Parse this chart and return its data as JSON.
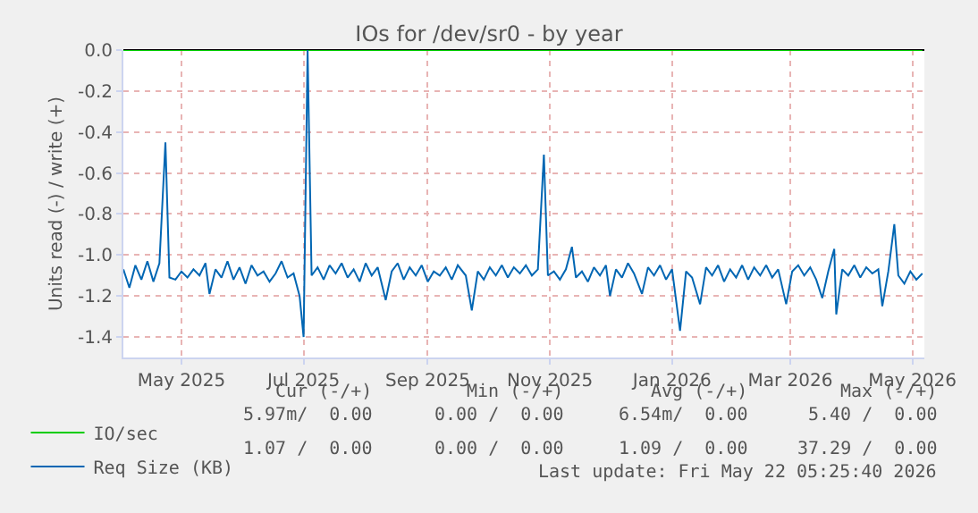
{
  "chart_data": {
    "type": "line",
    "title": "IOs for /dev/sr0 - by year",
    "ylabel": "Units read (-) / write (+)",
    "xlim": [
      "2025-04-17",
      "2026-05-22"
    ],
    "xticks": [
      {
        "value": "2025-05-16",
        "label": "May 2025"
      },
      {
        "value": "2025-07-16",
        "label": "Jul 2025"
      },
      {
        "value": "2025-09-16",
        "label": "Sep 2025"
      },
      {
        "value": "2025-11-16",
        "label": "Nov 2025"
      },
      {
        "value": "2026-01-16",
        "label": "Jan 2026"
      },
      {
        "value": "2026-03-16",
        "label": "Mar 2026"
      },
      {
        "value": "2026-05-16",
        "label": "May 2026"
      }
    ],
    "ylim": [
      -1.5,
      0
    ],
    "yticks": [
      {
        "value": -1.4,
        "label": "-1.4"
      },
      {
        "value": -1.2,
        "label": "-1.2"
      },
      {
        "value": -1,
        "label": "-1.0"
      },
      {
        "value": -0.8,
        "label": "-0.8"
      },
      {
        "value": -0.6,
        "label": "-0.6"
      },
      {
        "value": -0.4,
        "label": "-0.4"
      },
      {
        "value": -0.2,
        "label": "-0.2"
      },
      {
        "value": 0,
        "label": "0.0"
      }
    ],
    "grid": true,
    "legend": "bottom left",
    "line_style": "solid",
    "series": [
      {
        "name": "IO/sec",
        "color": "#00cc00",
        "x": [
          "2025-04-17",
          "2026-05-21"
        ],
        "values": [
          0,
          0
        ]
      },
      {
        "name": "Req Size (KB)",
        "color": "#0066b3",
        "x": [
          "2025-04-17",
          "2025-04-20",
          "2025-04-23",
          "2025-04-26",
          "2025-04-29",
          "2025-05-02",
          "2025-05-05",
          "2025-05-08",
          "2025-05-10",
          "2025-05-13",
          "2025-05-16",
          "2025-05-19",
          "2025-05-22",
          "2025-05-25",
          "2025-05-28",
          "2025-05-30",
          "2025-06-02",
          "2025-06-05",
          "2025-06-08",
          "2025-06-11",
          "2025-06-14",
          "2025-06-17",
          "2025-06-20",
          "2025-06-23",
          "2025-06-26",
          "2025-06-29",
          "2025-07-02",
          "2025-07-05",
          "2025-07-08",
          "2025-07-11",
          "2025-07-14",
          "2025-07-16",
          "2025-07-18",
          "2025-07-20",
          "2025-07-23",
          "2025-07-26",
          "2025-07-29",
          "2025-08-01",
          "2025-08-04",
          "2025-08-07",
          "2025-08-10",
          "2025-08-13",
          "2025-08-16",
          "2025-08-19",
          "2025-08-22",
          "2025-08-26",
          "2025-08-29",
          "2025-09-01",
          "2025-09-04",
          "2025-09-07",
          "2025-09-10",
          "2025-09-13",
          "2025-09-16",
          "2025-09-19",
          "2025-09-22",
          "2025-09-25",
          "2025-09-28",
          "2025-10-01",
          "2025-10-05",
          "2025-10-08",
          "2025-10-11",
          "2025-10-14",
          "2025-10-17",
          "2025-10-20",
          "2025-10-23",
          "2025-10-26",
          "2025-10-29",
          "2025-11-01",
          "2025-11-04",
          "2025-11-07",
          "2025-11-10",
          "2025-11-13",
          "2025-11-15",
          "2025-11-18",
          "2025-11-21",
          "2025-11-24",
          "2025-11-27",
          "2025-11-29",
          "2025-12-02",
          "2025-12-05",
          "2025-12-08",
          "2025-12-11",
          "2025-12-14",
          "2025-12-16",
          "2025-12-19",
          "2025-12-22",
          "2025-12-25",
          "2025-12-28",
          "2026-01-01",
          "2026-01-04",
          "2026-01-07",
          "2026-01-10",
          "2026-01-13",
          "2026-01-16",
          "2026-01-20",
          "2026-01-23",
          "2026-01-26",
          "2026-01-30",
          "2026-02-02",
          "2026-02-05",
          "2026-02-08",
          "2026-02-11",
          "2026-02-14",
          "2026-02-17",
          "2026-02-20",
          "2026-02-23",
          "2026-02-26",
          "2026-03-01",
          "2026-03-04",
          "2026-03-07",
          "2026-03-10",
          "2026-03-14",
          "2026-03-17",
          "2026-03-20",
          "2026-03-23",
          "2026-03-26",
          "2026-03-29",
          "2026-04-01",
          "2026-04-04",
          "2026-04-07",
          "2026-04-08",
          "2026-04-11",
          "2026-04-14",
          "2026-04-17",
          "2026-04-20",
          "2026-04-23",
          "2026-04-26",
          "2026-04-29",
          "2026-05-01",
          "2026-05-04",
          "2026-05-07",
          "2026-05-09",
          "2026-05-12",
          "2026-05-15",
          "2026-05-18",
          "2026-05-21"
        ],
        "values": [
          -1.07,
          -1.16,
          -1.05,
          -1.12,
          -1.03,
          -1.13,
          -1.04,
          -0.45,
          -1.11,
          -1.12,
          -1.08,
          -1.11,
          -1.07,
          -1.1,
          -1.04,
          -1.19,
          -1.07,
          -1.11,
          -1.03,
          -1.12,
          -1.06,
          -1.14,
          -1.05,
          -1.1,
          -1.08,
          -1.13,
          -1.09,
          -1.03,
          -1.11,
          -1.09,
          -1.2,
          -1.4,
          0,
          -1.1,
          -1.06,
          -1.12,
          -1.05,
          -1.09,
          -1.04,
          -1.11,
          -1.07,
          -1.13,
          -1.04,
          -1.1,
          -1.06,
          -1.22,
          -1.08,
          -1.04,
          -1.12,
          -1.06,
          -1.1,
          -1.05,
          -1.13,
          -1.08,
          -1.1,
          -1.06,
          -1.12,
          -1.05,
          -1.1,
          -1.27,
          -1.08,
          -1.12,
          -1.06,
          -1.1,
          -1.05,
          -1.11,
          -1.06,
          -1.09,
          -1.05,
          -1.1,
          -1.07,
          -0.51,
          -1.1,
          -1.08,
          -1.12,
          -1.07,
          -0.96,
          -1.11,
          -1.08,
          -1.13,
          -1.06,
          -1.1,
          -1.05,
          -1.2,
          -1.07,
          -1.11,
          -1.04,
          -1.09,
          -1.19,
          -1.06,
          -1.1,
          -1.05,
          -1.12,
          -1.07,
          -1.37,
          -1.08,
          -1.11,
          -1.24,
          -1.06,
          -1.1,
          -1.05,
          -1.13,
          -1.07,
          -1.11,
          -1.05,
          -1.12,
          -1.06,
          -1.1,
          -1.05,
          -1.11,
          -1.07,
          -1.24,
          -1.08,
          -1.05,
          -1.1,
          -1.06,
          -1.12,
          -1.21,
          -1.08,
          -0.97,
          -1.29,
          -1.07,
          -1.1,
          -1.05,
          -1.11,
          -1.06,
          -1.09,
          -1.07,
          -1.25,
          -1.08,
          -0.85,
          -1.1,
          -1.14,
          -1.08,
          -1.12,
          -1.09
        ]
      }
    ],
    "annotations": [
      "Cur (-/+)",
      "Min (-/+)",
      "Avg (-/+)",
      "Max (-/+)",
      "5.97m/  0.00",
      "0.00 /  0.00",
      "6.54m/  0.00",
      "5.40 /  0.00",
      "1.07 /  0.00",
      "0.00 /  0.00",
      "1.09 /  0.00",
      "37.29 /  0.00",
      "Last update: Fri May 22 05:25:40 2026"
    ]
  }
}
